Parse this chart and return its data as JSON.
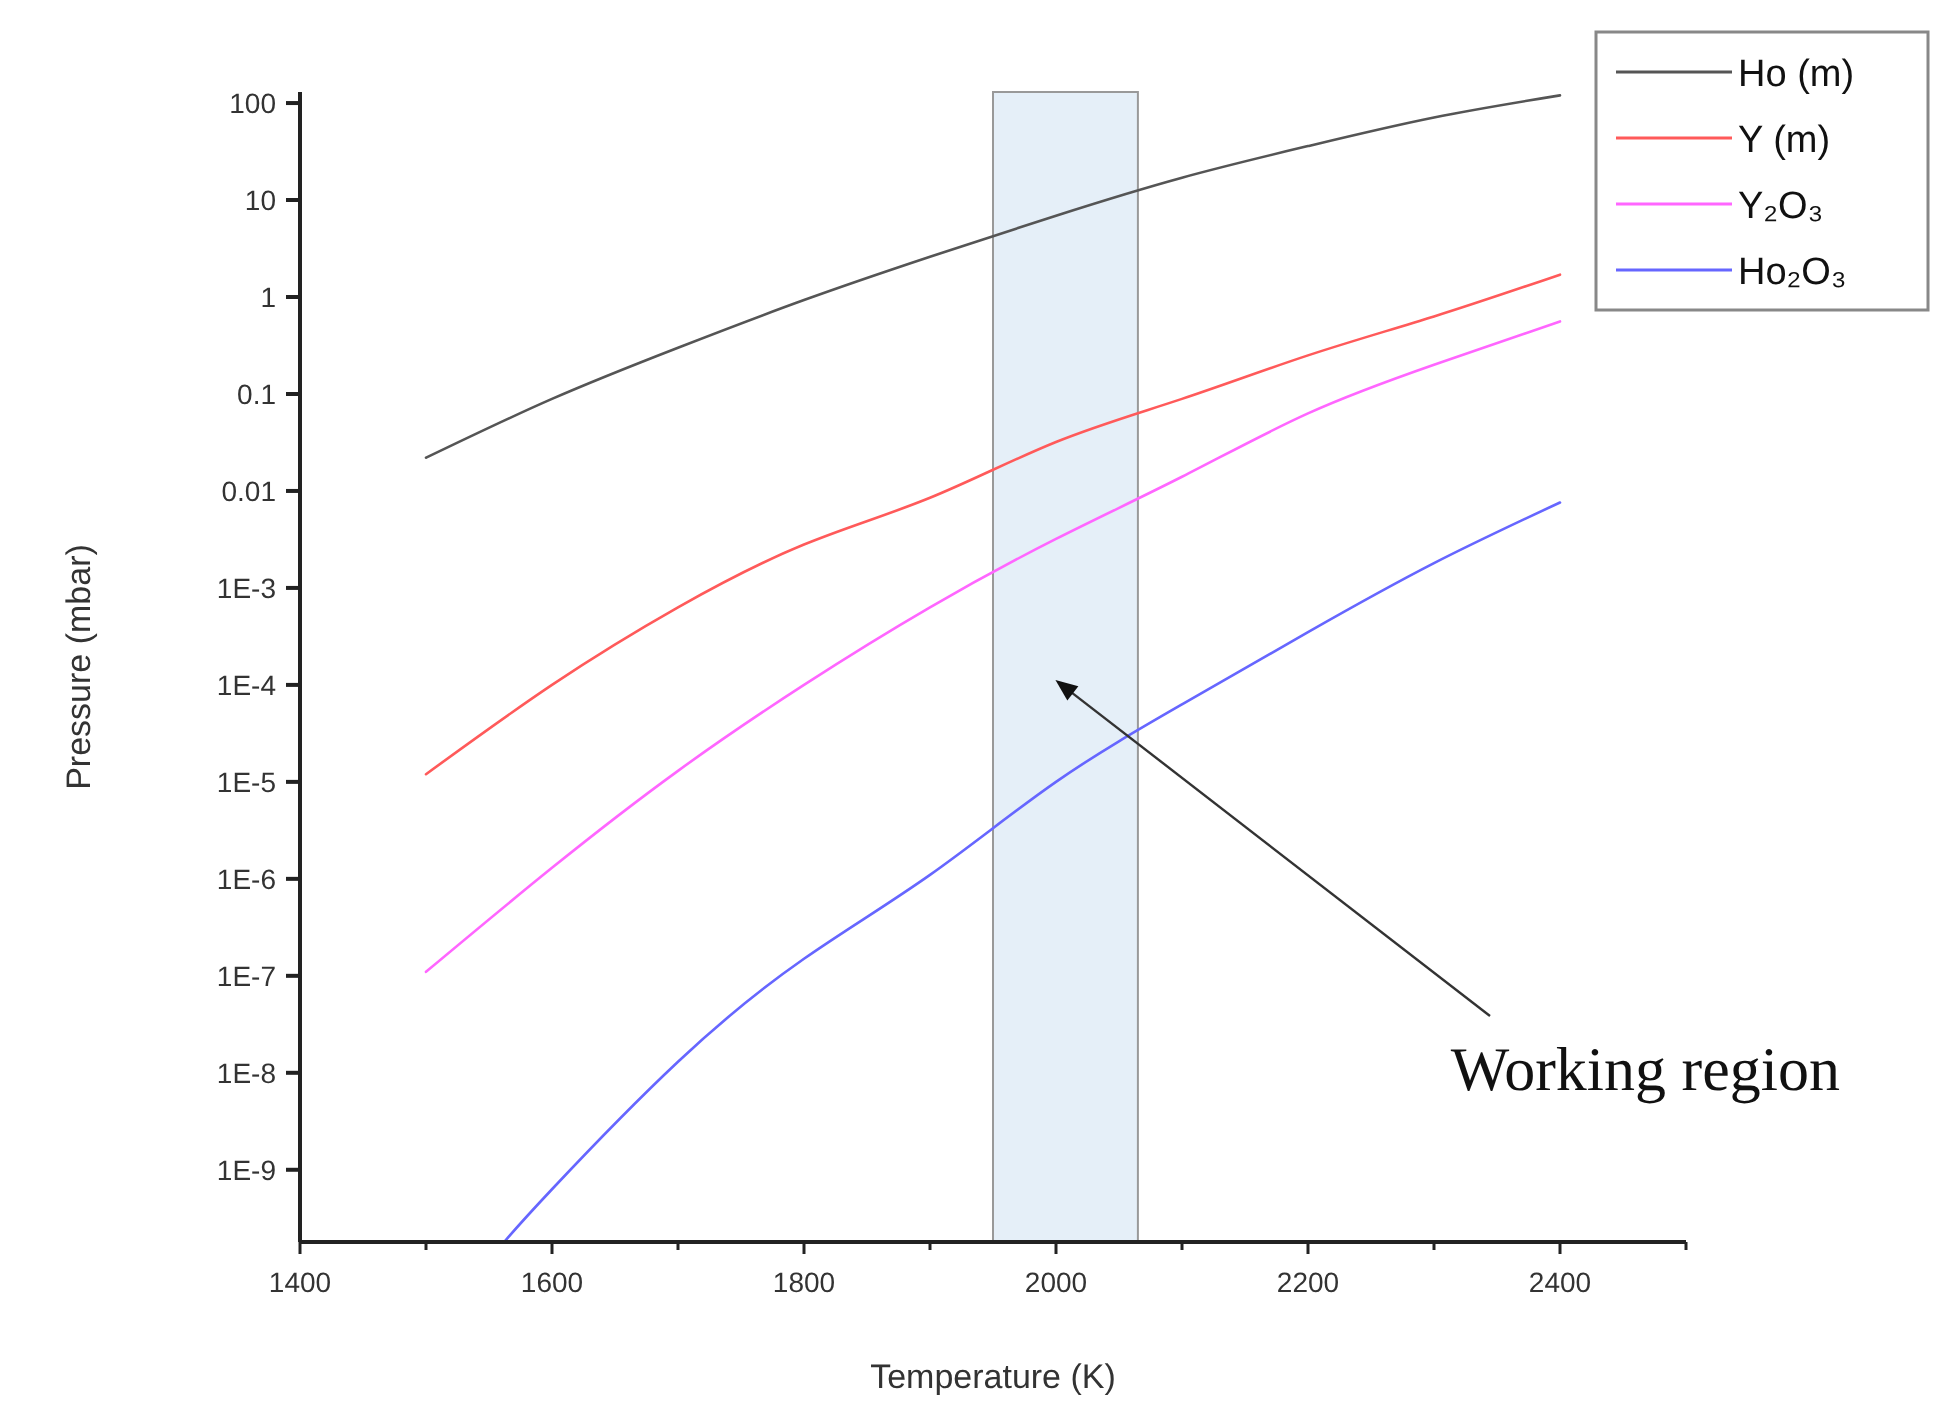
{
  "chart_data": {
    "type": "line",
    "xlabel": "Temperature (K)",
    "ylabel": "Pressure (mbar)",
    "log": "y",
    "legend": "top right",
    "grid": false,
    "line_style": "solid",
    "marker": "none",
    "x": [
      1500,
      1600,
      1700,
      1800,
      1900,
      2000,
      2100,
      2200,
      2300,
      2400
    ],
    "xlim": [
      1400,
      2500
    ],
    "xticks": [
      1400,
      {
        "value": 1500,
        "label": null
      },
      1600,
      {
        "value": 1700,
        "label": null
      },
      1800,
      {
        "value": 1900,
        "label": null
      },
      2000,
      {
        "value": 2100,
        "label": null
      },
      2200,
      {
        "value": 2300,
        "label": null
      },
      2400,
      {
        "value": 2500,
        "label": null
      }
    ],
    "ylim": [
      1.8e-10,
      130
    ],
    "yticks": [
      {
        "value": 1e-09,
        "label": "1E-9"
      },
      {
        "value": 1e-08,
        "label": "1E-8"
      },
      {
        "value": 1e-07,
        "label": "1E-7"
      },
      {
        "value": 1e-06,
        "label": "1E-6"
      },
      {
        "value": 1e-05,
        "label": "1E-5"
      },
      {
        "value": 0.0001,
        "label": "1E-4"
      },
      {
        "value": 0.001,
        "label": "1E-3"
      },
      0.01,
      0.1,
      1,
      10,
      100
    ],
    "series": [
      {
        "name": "Ho (m)",
        "color": "#555555",
        "values": [
          0.022,
          0.089,
          0.3,
          0.93,
          2.6,
          6.9,
          17,
          36,
          71,
          120
        ]
      },
      {
        "name": "Y (m)",
        "color": "#ff5a5a",
        "values": [
          1.2e-05,
          0.0001,
          0.00063,
          0.0028,
          0.0085,
          0.032,
          0.089,
          0.25,
          0.63,
          1.7
        ]
      },
      {
        "name": "Y₂O₃",
        "color": "#ff66ff",
        "values": [
          1.1e-07,
          1.3e-06,
          1.3e-05,
          0.0001,
          0.00063,
          0.0032,
          0.014,
          0.063,
          0.2,
          0.56
        ]
      },
      {
        "name": "Ho₂O₃",
        "color": "#6666ff",
        "x": [
          1562,
          1600,
          1700,
          1800,
          1900,
          2000,
          2100,
          2200,
          2300,
          2400
        ],
        "values": [
          1.8e-10,
          6.3e-10,
          1.3e-08,
          1.5e-07,
          1.1e-06,
          1e-05,
          6.3e-05,
          0.00035,
          0.0018,
          0.0076
        ]
      }
    ],
    "bands": [
      {
        "axis": "x",
        "from": 1950,
        "to": 2065,
        "label": null,
        "color": "#dce9f5"
      }
    ],
    "annotations": [
      "Working region"
    ]
  }
}
